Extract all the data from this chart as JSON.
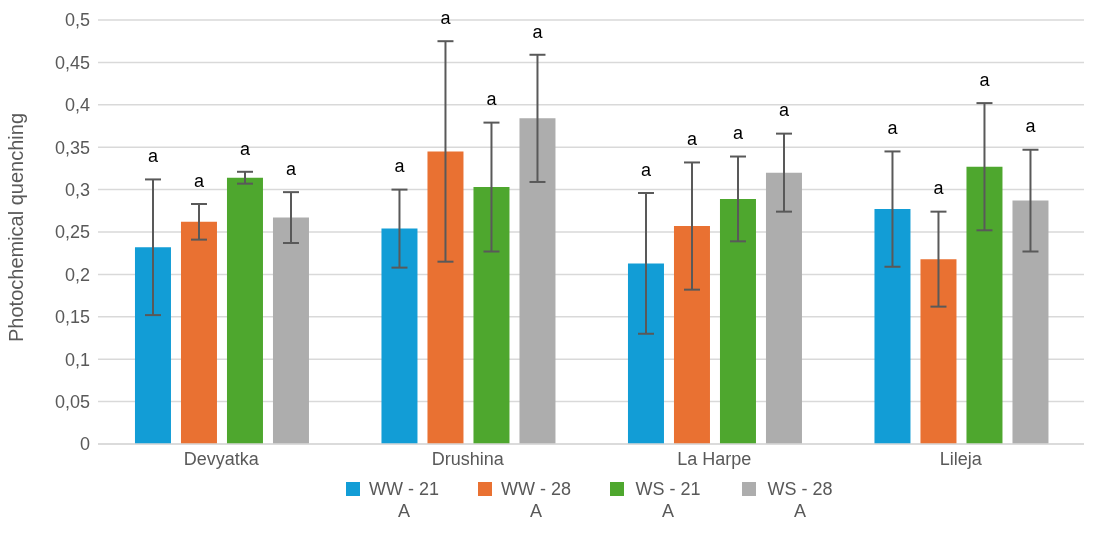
{
  "chart_data": {
    "type": "bar",
    "ylabel": "Photochemical quenching",
    "categories": [
      "Devyatka",
      "Drushina",
      "La Harpe",
      "Lileja"
    ],
    "series": [
      {
        "name": "WW - 21 A",
        "color": "#129dd6",
        "values": [
          0.232,
          0.254,
          0.213,
          0.277
        ],
        "errors": [
          0.08,
          0.046,
          0.083,
          0.068
        ]
      },
      {
        "name": "WW - 28 A",
        "color": "#e97132",
        "values": [
          0.262,
          0.345,
          0.257,
          0.218
        ],
        "errors": [
          0.021,
          0.13,
          0.075,
          0.056
        ]
      },
      {
        "name": "WS - 21 A",
        "color": "#4ea72e",
        "values": [
          0.314,
          0.303,
          0.289,
          0.327
        ],
        "errors": [
          0.007,
          0.076,
          0.05,
          0.075
        ]
      },
      {
        "name": "WS - 28 A",
        "color": "#adadad",
        "values": [
          0.267,
          0.384,
          0.32,
          0.287
        ],
        "errors": [
          0.03,
          0.075,
          0.046,
          0.06
        ]
      }
    ],
    "ylim": [
      0,
      0.5
    ],
    "yticks": [
      {
        "value": 0,
        "label": "0"
      },
      {
        "value": 0.05,
        "label": "0,05"
      },
      {
        "value": 0.1,
        "label": "0,1"
      },
      {
        "value": 0.15,
        "label": "0,15"
      },
      {
        "value": 0.2,
        "label": "0,2"
      },
      {
        "value": 0.25,
        "label": "0,25"
      },
      {
        "value": 0.3,
        "label": "0,3"
      },
      {
        "value": 0.35,
        "label": "0,35"
      },
      {
        "value": 0.4,
        "label": "0,4"
      },
      {
        "value": 0.45,
        "label": "0,45"
      },
      {
        "value": 0.5,
        "label": "0,5"
      }
    ],
    "annotations": [
      "a",
      "a",
      "a",
      "a",
      "a",
      "a",
      "a",
      "a",
      "a",
      "a",
      "a",
      "a",
      "a",
      "a",
      "a",
      "a"
    ],
    "grid": "y",
    "legend": "bottom"
  }
}
